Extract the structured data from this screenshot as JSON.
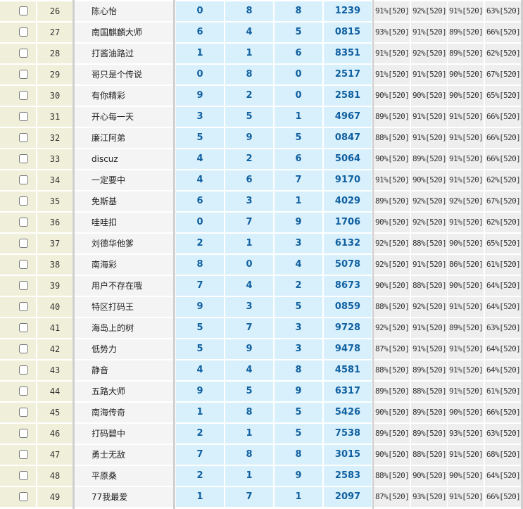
{
  "rows": [
    {
      "no": "26",
      "name": "陈心怡",
      "d": [
        "0",
        "8",
        "8",
        "1239"
      ],
      "p": [
        "91%[520]",
        "92%[520]",
        "91%[520]",
        "63%[520]"
      ]
    },
    {
      "no": "27",
      "name": "南国麒麟大师",
      "d": [
        "6",
        "4",
        "5",
        "0815"
      ],
      "p": [
        "93%[520]",
        "91%[520]",
        "89%[520]",
        "66%[520]"
      ]
    },
    {
      "no": "28",
      "name": "打酱油路过",
      "d": [
        "1",
        "1",
        "6",
        "8351"
      ],
      "p": [
        "91%[520]",
        "92%[520]",
        "89%[520]",
        "62%[520]"
      ]
    },
    {
      "no": "29",
      "name": "哥只是个传说",
      "d": [
        "0",
        "8",
        "0",
        "2517"
      ],
      "p": [
        "91%[520]",
        "91%[520]",
        "90%[520]",
        "67%[520]"
      ]
    },
    {
      "no": "30",
      "name": "有你精彩",
      "d": [
        "9",
        "2",
        "0",
        "2581"
      ],
      "p": [
        "90%[520]",
        "90%[520]",
        "90%[520]",
        "65%[520]"
      ]
    },
    {
      "no": "31",
      "name": "开心每一天",
      "d": [
        "3",
        "5",
        "1",
        "4967"
      ],
      "p": [
        "89%[520]",
        "91%[520]",
        "91%[520]",
        "66%[520]"
      ]
    },
    {
      "no": "32",
      "name": "廉江阿弟",
      "d": [
        "5",
        "9",
        "5",
        "0847"
      ],
      "p": [
        "88%[520]",
        "91%[520]",
        "91%[520]",
        "66%[520]"
      ]
    },
    {
      "no": "33",
      "name": "discuz",
      "d": [
        "4",
        "2",
        "6",
        "5064"
      ],
      "p": [
        "90%[520]",
        "89%[520]",
        "91%[520]",
        "66%[520]"
      ]
    },
    {
      "no": "34",
      "name": "一定要中",
      "d": [
        "4",
        "6",
        "7",
        "9170"
      ],
      "p": [
        "91%[520]",
        "90%[520]",
        "91%[520]",
        "62%[520]"
      ]
    },
    {
      "no": "35",
      "name": "免斯基",
      "d": [
        "6",
        "3",
        "1",
        "4029"
      ],
      "p": [
        "89%[520]",
        "92%[520]",
        "92%[520]",
        "67%[520]"
      ]
    },
    {
      "no": "36",
      "name": "哇哇扣",
      "d": [
        "0",
        "7",
        "9",
        "1706"
      ],
      "p": [
        "90%[520]",
        "92%[520]",
        "91%[520]",
        "62%[520]"
      ]
    },
    {
      "no": "37",
      "name": "刘德华他爹",
      "d": [
        "2",
        "1",
        "3",
        "6132"
      ],
      "p": [
        "92%[520]",
        "88%[520]",
        "90%[520]",
        "65%[520]"
      ]
    },
    {
      "no": "38",
      "name": "南海彩",
      "d": [
        "8",
        "0",
        "4",
        "5078"
      ],
      "p": [
        "92%[520]",
        "91%[520]",
        "86%[520]",
        "61%[520]"
      ]
    },
    {
      "no": "39",
      "name": "用户不存在哦",
      "d": [
        "7",
        "4",
        "2",
        "8673"
      ],
      "p": [
        "90%[520]",
        "88%[520]",
        "90%[520]",
        "64%[520]"
      ]
    },
    {
      "no": "40",
      "name": "特区打码王",
      "d": [
        "9",
        "3",
        "5",
        "0859"
      ],
      "p": [
        "88%[520]",
        "92%[520]",
        "91%[520]",
        "64%[520]"
      ]
    },
    {
      "no": "41",
      "name": "海岛上的树",
      "d": [
        "5",
        "7",
        "3",
        "9728"
      ],
      "p": [
        "92%[520]",
        "91%[520]",
        "89%[520]",
        "63%[520]"
      ]
    },
    {
      "no": "42",
      "name": "低势力",
      "d": [
        "5",
        "9",
        "3",
        "9478"
      ],
      "p": [
        "87%[520]",
        "91%[520]",
        "91%[520]",
        "64%[520]"
      ]
    },
    {
      "no": "43",
      "name": "静音",
      "d": [
        "4",
        "4",
        "8",
        "4581"
      ],
      "p": [
        "88%[520]",
        "89%[520]",
        "91%[520]",
        "64%[520]"
      ]
    },
    {
      "no": "44",
      "name": "五路大师",
      "d": [
        "9",
        "5",
        "9",
        "6317"
      ],
      "p": [
        "89%[520]",
        "88%[520]",
        "91%[520]",
        "61%[520]"
      ]
    },
    {
      "no": "45",
      "name": "南海传奇",
      "d": [
        "1",
        "8",
        "5",
        "5426"
      ],
      "p": [
        "90%[520]",
        "89%[520]",
        "90%[520]",
        "66%[520]"
      ]
    },
    {
      "no": "46",
      "name": "打码碧中",
      "d": [
        "2",
        "1",
        "5",
        "7538"
      ],
      "p": [
        "89%[520]",
        "89%[520]",
        "93%[520]",
        "63%[520]"
      ]
    },
    {
      "no": "47",
      "name": "勇士无敌",
      "d": [
        "7",
        "8",
        "8",
        "3015"
      ],
      "p": [
        "90%[520]",
        "88%[520]",
        "91%[520]",
        "68%[520]"
      ]
    },
    {
      "no": "48",
      "name": "平原桑",
      "d": [
        "2",
        "1",
        "9",
        "2583"
      ],
      "p": [
        "88%[520]",
        "90%[520]",
        "90%[520]",
        "64%[520]"
      ]
    },
    {
      "no": "49",
      "name": "77我最爱",
      "d": [
        "1",
        "7",
        "1",
        "2097"
      ],
      "p": [
        "87%[520]",
        "93%[520]",
        "91%[520]",
        "66%[520]"
      ]
    }
  ]
}
